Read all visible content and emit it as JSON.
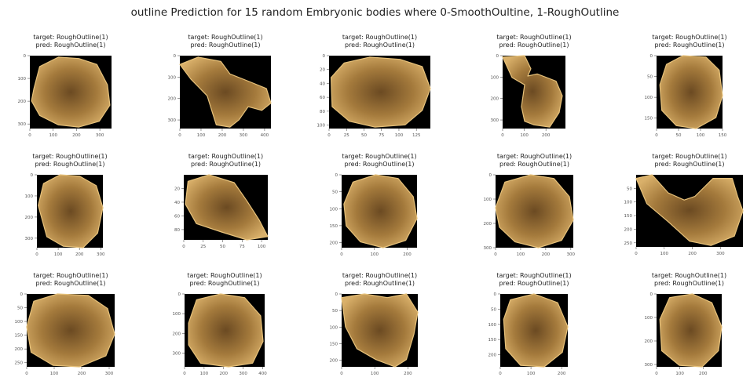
{
  "title": "outline Prediction for 15 random Embryonic bodies where 0-SmoothOultine, 1-RoughOutline",
  "chart_data": {
    "type": "image-grid",
    "rows": 3,
    "cols": 5,
    "panels": [
      {
        "target": "target: RoughOutline(1)",
        "pred": "pred: RoughOutline(1)",
        "xticks": [
          0,
          100,
          200,
          300
        ],
        "yticks": [
          0,
          100,
          200,
          300
        ],
        "xlim": [
          0,
          350
        ],
        "ylim": [
          320,
          0
        ]
      },
      {
        "target": "target: RoughOutline(1)",
        "pred": "pred: RoughOutline(1)",
        "xticks": [
          0,
          100,
          200,
          300,
          400
        ],
        "yticks": [
          0,
          100,
          200,
          300
        ],
        "xlim": [
          0,
          430
        ],
        "ylim": [
          340,
          0
        ]
      },
      {
        "target": "target: RoughOutline(1)",
        "pred": "pred: RoughOutline(1)",
        "xticks": [
          0,
          25,
          50,
          75,
          100,
          125
        ],
        "yticks": [
          0,
          20,
          40,
          60,
          80,
          100
        ],
        "xlim": [
          0,
          145
        ],
        "ylim": [
          105,
          0
        ]
      },
      {
        "target": "target: RoughOutline(1)",
        "pred": "pred: RoughOutline(1)",
        "xticks": [
          0,
          100,
          200
        ],
        "yticks": [
          0,
          100,
          200,
          300
        ],
        "xlim": [
          0,
          290
        ],
        "ylim": [
          340,
          0
        ]
      },
      {
        "target": "target: RoughOutline(1)",
        "pred": "pred: RoughOutline(1)",
        "xticks": [
          0,
          50,
          100,
          150
        ],
        "yticks": [
          0,
          50,
          100,
          150
        ],
        "xlim": [
          0,
          150
        ],
        "ylim": [
          175,
          0
        ]
      },
      {
        "target": "target: RoughOutline(1)",
        "pred": "pred: RoughOutline(1)",
        "xticks": [
          0,
          100,
          200,
          300
        ],
        "yticks": [
          0,
          100,
          200,
          300
        ],
        "xlim": [
          0,
          310
        ],
        "ylim": [
          345,
          0
        ]
      },
      {
        "target": "target: RoughOutline(1)",
        "pred": "pred: RoughOutline(1)",
        "xticks": [
          0,
          25,
          50,
          75,
          100
        ],
        "yticks": [
          20,
          40,
          60,
          80
        ],
        "xlim": [
          0,
          108
        ],
        "ylim": [
          95,
          0
        ]
      },
      {
        "target": "target: RoughOutline(1)",
        "pred": "pred: RoughOutline(1)",
        "xticks": [
          0,
          100,
          200
        ],
        "yticks": [
          0,
          50,
          100,
          150,
          200
        ],
        "xlim": [
          0,
          230
        ],
        "ylim": [
          215,
          0
        ]
      },
      {
        "target": "target: RoughOutline(1)",
        "pred": "pred: RoughOutline(1)",
        "xticks": [
          0,
          100,
          200,
          300
        ],
        "yticks": [
          0,
          100,
          200,
          300
        ],
        "xlim": [
          0,
          310
        ],
        "ylim": [
          300,
          0
        ]
      },
      {
        "target": "target: RoughOutline(1)",
        "pred": "pred: RoughOutline(1)",
        "xticks": [
          0,
          100,
          200,
          300
        ],
        "yticks": [
          50,
          100,
          150,
          200,
          250
        ],
        "xlim": [
          0,
          380
        ],
        "ylim": [
          265,
          0
        ]
      },
      {
        "target": "target: RoughOutline(1)",
        "pred": "pred: RoughOutline(1)",
        "xticks": [
          0,
          100,
          200,
          300
        ],
        "yticks": [
          0,
          50,
          100,
          150,
          200,
          250
        ],
        "xlim": [
          0,
          320
        ],
        "ylim": [
          265,
          0
        ]
      },
      {
        "target": "target: RoughOutline(1)",
        "pred": "pred: RoughOutline(1)",
        "xticks": [
          0,
          100,
          200,
          300,
          400
        ],
        "yticks": [
          0,
          100,
          200,
          300
        ],
        "xlim": [
          0,
          410
        ],
        "ylim": [
          370,
          0
        ]
      },
      {
        "target": "target: RoughOutline(1)",
        "pred": "pred: RoughOutline(1)",
        "xticks": [
          0,
          100,
          200
        ],
        "yticks": [
          0,
          50,
          100,
          150,
          200
        ],
        "xlim": [
          0,
          230
        ],
        "ylim": [
          220,
          0
        ]
      },
      {
        "target": "target: RoughOutline(1)",
        "pred": "pred: RoughOutline(1)",
        "xticks": [
          0,
          100,
          200
        ],
        "yticks": [
          0,
          50,
          100,
          150,
          200
        ],
        "xlim": [
          0,
          220
        ],
        "ylim": [
          240,
          0
        ]
      },
      {
        "target": "target: RoughOutline(1)",
        "pred": "pred: RoughOutline(1)",
        "xticks": [
          0,
          100,
          200
        ],
        "yticks": [
          0,
          100,
          200,
          300
        ],
        "xlim": [
          0,
          280
        ],
        "ylim": [
          310,
          0
        ]
      }
    ]
  },
  "colors": {
    "background": "#000000",
    "body_light": "#d9b06a",
    "body_dark": "#6b4a22",
    "tick": "#555555"
  }
}
